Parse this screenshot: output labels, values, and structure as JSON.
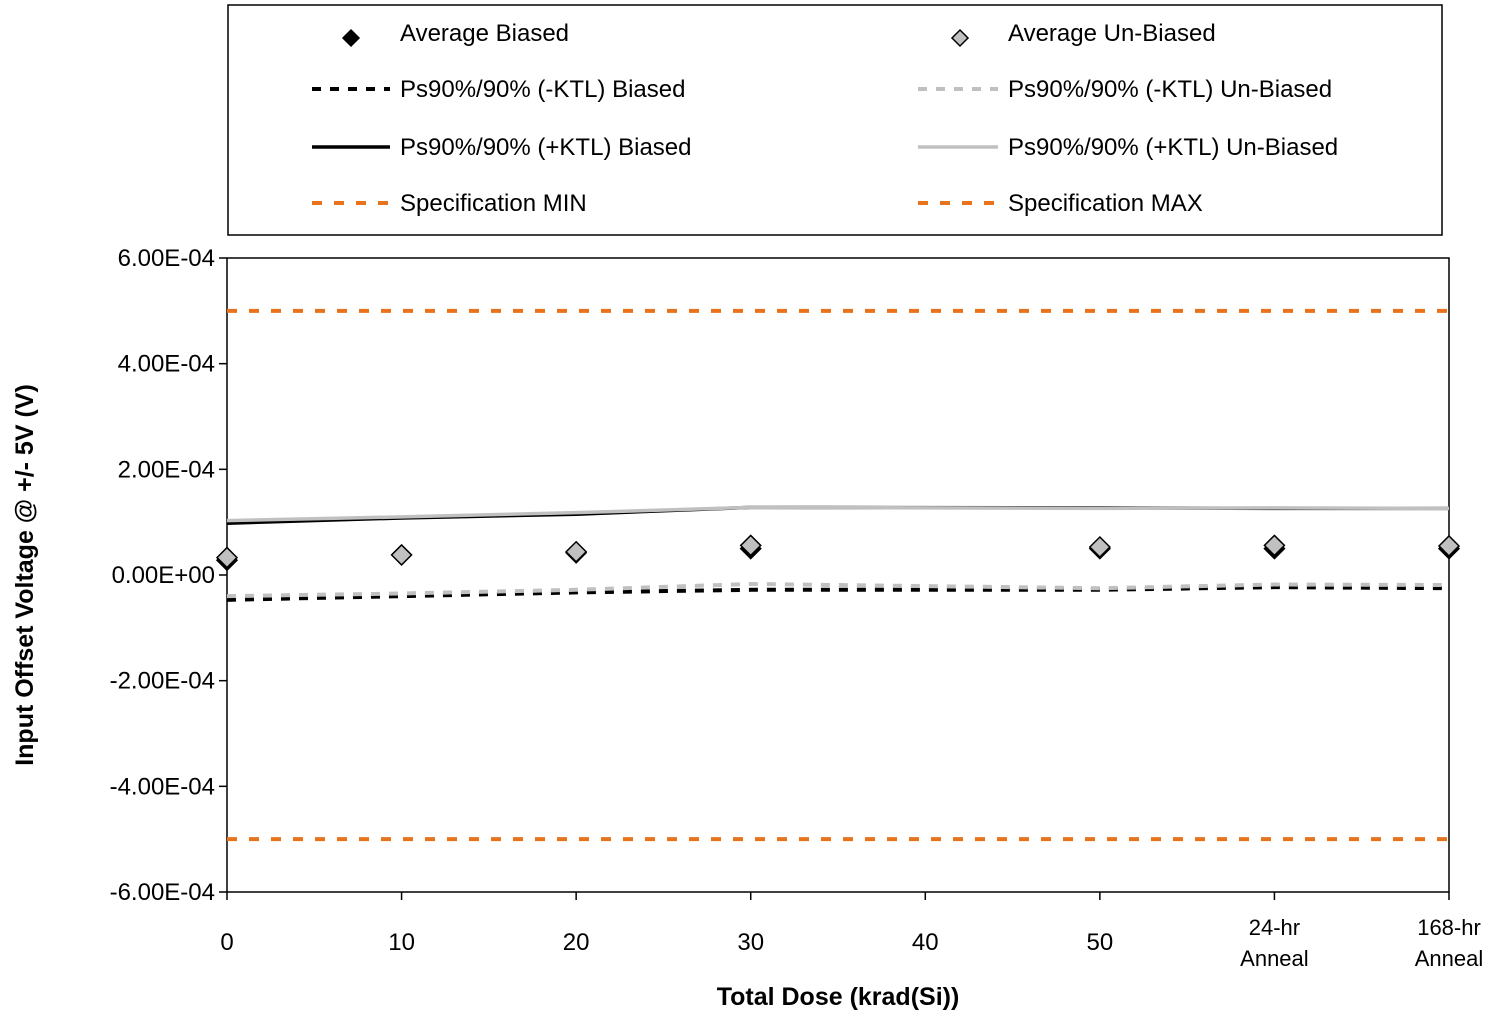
{
  "chart_data": {
    "type": "line",
    "xlabel": "Total Dose (krad(Si))",
    "ylabel": "Input Offset Voltage @ +/- 5V (V)",
    "xlim": [
      0,
      70
    ],
    "ylim": [
      -0.0006,
      0.0006
    ],
    "grid": false,
    "legend_position": "top",
    "x_ticks": [
      {
        "x": 0,
        "label": "0"
      },
      {
        "x": 10,
        "label": "10"
      },
      {
        "x": 20,
        "label": "20"
      },
      {
        "x": 30,
        "label": "30"
      },
      {
        "x": 40,
        "label": "40"
      },
      {
        "x": 50,
        "label": "50"
      },
      {
        "x": 60,
        "label": "24-hr",
        "label2": "Anneal"
      },
      {
        "x": 70,
        "label": "168-hr",
        "label2": "Anneal"
      }
    ],
    "y_ticks": [
      {
        "y": 0.0006,
        "label": "6.00E-04"
      },
      {
        "y": 0.0004,
        "label": "4.00E-04"
      },
      {
        "y": 0.0002,
        "label": "2.00E-04"
      },
      {
        "y": 0.0,
        "label": "0.00E+00"
      },
      {
        "y": -0.0002,
        "label": "-2.00E-04"
      },
      {
        "y": -0.0004,
        "label": "-4.00E-04"
      },
      {
        "y": -0.0006,
        "label": "-6.00E-04"
      }
    ],
    "series": [
      {
        "name": "Average Biased",
        "kind": "marker",
        "color": "#000000",
        "x": [
          0,
          20,
          30,
          50,
          60,
          70
        ],
        "y": [
          2.8e-05,
          4.2e-05,
          5e-05,
          5e-05,
          5e-05,
          5e-05
        ]
      },
      {
        "name": "Average Un-Biased",
        "kind": "marker",
        "color": "#c0c0c0",
        "x": [
          0,
          10,
          20,
          30,
          50,
          60,
          70
        ],
        "y": [
          3.3e-05,
          3.8e-05,
          4.4e-05,
          5.6e-05,
          5.3e-05,
          5.6e-05,
          5.5e-05
        ]
      },
      {
        "name": "Ps90%/90% (-KTL) Biased",
        "kind": "dashed",
        "color": "#000000",
        "x": [
          0,
          10,
          20,
          30,
          50,
          60,
          70
        ],
        "y": [
          -4.7e-05,
          -4e-05,
          -3.3e-05,
          -2.8e-05,
          -2.8e-05,
          -2.3e-05,
          -2.5e-05
        ]
      },
      {
        "name": "Ps90%/90% (-KTL) Un-Biased",
        "kind": "dashed",
        "color": "#c0c0c0",
        "x": [
          0,
          10,
          20,
          30,
          50,
          60,
          70
        ],
        "y": [
          -4e-05,
          -3.5e-05,
          -2.8e-05,
          -1.7e-05,
          -2.5e-05,
          -1.8e-05,
          -1.9e-05
        ]
      },
      {
        "name": "Ps90%/90% (+KTL) Biased",
        "kind": "solid",
        "color": "#000000",
        "x": [
          0,
          10,
          20,
          30,
          50,
          60,
          70
        ],
        "y": [
          9.8e-05,
          0.000108,
          0.000115,
          0.000128,
          0.000127,
          0.000126,
          0.000126
        ]
      },
      {
        "name": "Ps90%/90% (+KTL) Un-Biased",
        "kind": "solid",
        "color": "#c0c0c0",
        "x": [
          0,
          10,
          20,
          30,
          50,
          60,
          70
        ],
        "y": [
          0.000103,
          0.00011,
          0.000118,
          0.000128,
          0.000126,
          0.000127,
          0.000126
        ]
      },
      {
        "name": "Specification MIN",
        "kind": "dashed-spec",
        "color": "#e8731c",
        "x": [
          0,
          70
        ],
        "y": [
          -0.0005,
          -0.0005
        ]
      },
      {
        "name": "Specification MAX",
        "kind": "dashed-spec",
        "color": "#e8731c",
        "x": [
          0,
          70
        ],
        "y": [
          0.0005,
          0.0005
        ]
      }
    ]
  }
}
